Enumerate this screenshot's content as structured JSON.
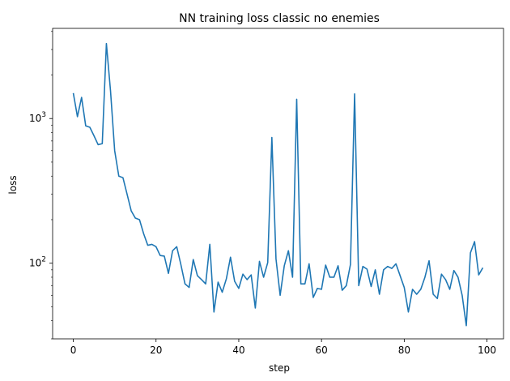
{
  "chart_data": {
    "type": "line",
    "title": "NN training loss classic no enemies",
    "xlabel": "step",
    "ylabel": "loss",
    "yscale": "log",
    "xlim": [
      -5,
      104
    ],
    "ylim": [
      30,
      4200
    ],
    "grid": false,
    "line_color": "#1f77b4",
    "x_ticks": [
      0,
      20,
      40,
      60,
      80,
      100
    ],
    "y_ticks": [
      {
        "value": 100,
        "base": "10",
        "exp": "2"
      },
      {
        "value": 1000,
        "base": "10",
        "exp": "3"
      }
    ],
    "series": [
      {
        "values": [
          1500,
          1030,
          1400,
          890,
          870,
          760,
          660,
          670,
          3300,
          1550,
          600,
          400,
          390,
          300,
          230,
          205,
          200,
          160,
          133,
          135,
          130,
          113,
          112,
          85,
          122,
          130,
          98,
          72,
          68,
          106,
          82,
          77,
          72,
          135,
          46,
          74,
          63,
          78,
          110,
          75,
          67,
          84,
          77,
          83,
          49,
          103,
          80,
          101,
          740,
          107,
          60,
          96,
          122,
          80,
          1360,
          72,
          72,
          99,
          58,
          67,
          66,
          97,
          80,
          80,
          96,
          65,
          70,
          98,
          1480,
          70,
          95,
          91,
          69,
          90,
          61,
          90,
          95,
          92,
          99,
          82,
          68,
          46,
          66,
          61,
          66,
          80,
          104,
          61,
          57,
          84,
          77,
          66,
          89,
          80,
          60,
          37,
          118,
          141,
          83,
          93
        ]
      }
    ]
  }
}
